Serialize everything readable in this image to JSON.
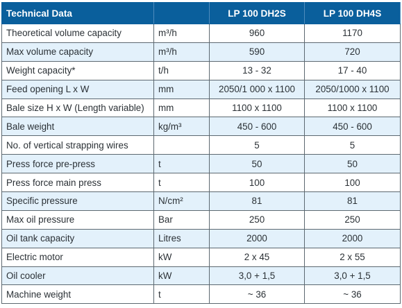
{
  "table": {
    "headers": {
      "parameter": "Technical Data",
      "unit": "",
      "model_1": "LP 100 DH2S",
      "model_2": "LP 100 DH4S"
    },
    "rows": [
      {
        "parameter": "Theoretical volume capacity",
        "unit": "m³/h",
        "model_1": "960",
        "model_2": "1170"
      },
      {
        "parameter": "Max volume capacity",
        "unit": "m³/h",
        "model_1": "590",
        "model_2": "720"
      },
      {
        "parameter": "Weight capacity*",
        "unit": "t/h",
        "model_1": "13 - 32",
        "model_2": "17 - 40"
      },
      {
        "parameter": "Feed opening L x W",
        "unit": "mm",
        "model_1": "2050/1 000 x 1100",
        "model_2": "2050/1000 x 1100"
      },
      {
        "parameter": "Bale size H x W (Length variable)",
        "unit": "mm",
        "model_1": "1100 x 1100",
        "model_2": "1100 x 1100"
      },
      {
        "parameter": "Bale weight",
        "unit": "kg/m³",
        "model_1": "450 - 600",
        "model_2": "450 - 600"
      },
      {
        "parameter": "No. of vertical strapping wires",
        "unit": "",
        "model_1": "5",
        "model_2": "5"
      },
      {
        "parameter": "Press force pre-press",
        "unit": "t",
        "model_1": "50",
        "model_2": "50"
      },
      {
        "parameter": "Press force main press",
        "unit": "t",
        "model_1": "100",
        "model_2": "100"
      },
      {
        "parameter": "Specific pressure",
        "unit": "N/cm²",
        "model_1": "81",
        "model_2": "81"
      },
      {
        "parameter": "Max oil pressure",
        "unit": "Bar",
        "model_1": "250",
        "model_2": "250"
      },
      {
        "parameter": "Oil tank capacity",
        "unit": "Litres",
        "model_1": "2000",
        "model_2": "2000"
      },
      {
        "parameter": "Electric motor",
        "unit": "kW",
        "model_1": "2 x 45",
        "model_2": "2 x 55"
      },
      {
        "parameter": "Oil cooler",
        "unit": "kW",
        "model_1": "3,0 + 1,5",
        "model_2": "3,0 + 1,5"
      },
      {
        "parameter": "Machine weight",
        "unit": "t",
        "model_1": "~ 36",
        "model_2": "~ 36"
      }
    ]
  },
  "colors": {
    "header_background": "#0a5f9c",
    "header_text": "#ffffff",
    "alternate_row": "#e3f1fb",
    "text": "#2b3136",
    "border": "#5c6870"
  }
}
